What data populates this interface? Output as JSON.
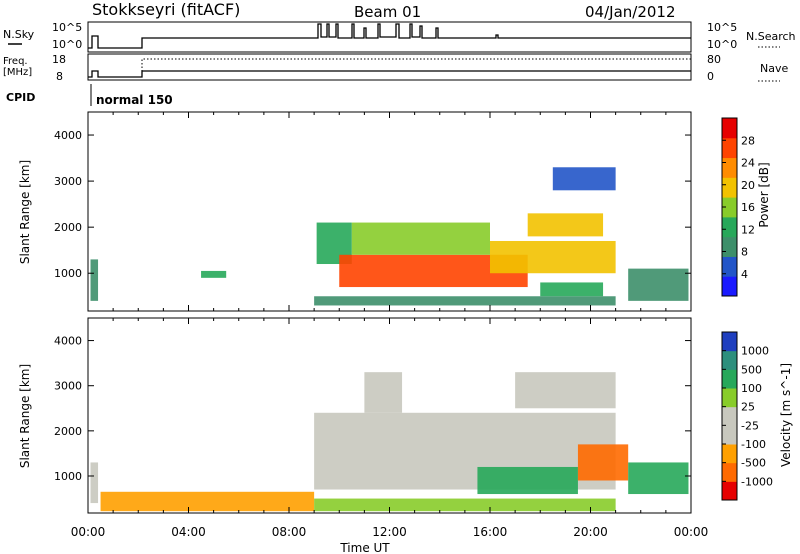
{
  "header": {
    "station": "Stokkseyri (fitACF)",
    "beam": "Beam 01",
    "date": "04/Jan/2012"
  },
  "strip_panels": {
    "nsky": {
      "label": "N.Sky",
      "right_label": "N.Search",
      "left_ticks": [
        "10^5",
        "10^0"
      ],
      "right_ticks": [
        "10^5",
        "10^0"
      ]
    },
    "freq": {
      "label_line1": "Freq.",
      "label_line2": "[MHz]",
      "right_label": "Nave",
      "left_ticks": [
        "18",
        "8"
      ],
      "right_ticks": [
        "80",
        "0"
      ]
    },
    "cpid": {
      "label": "CPID",
      "mode": "normal 150"
    }
  },
  "colors": {
    "power_scale": [
      "#1a1aff",
      "#2255c8",
      "#3d8f6a",
      "#27a85a",
      "#88cc2a",
      "#f2c200",
      "#ff8c00",
      "#ff4400",
      "#e60000"
    ],
    "velocity_scale": [
      "#e60000",
      "#ff6a00",
      "#ffa000",
      "#c8c8be",
      "#c8c8be",
      "#88cc2a",
      "#27a85a",
      "#2d8f7d",
      "#1f3fbf"
    ],
    "ground_scatter": "#c8c8be"
  },
  "chart_data": [
    {
      "type": "heatmap",
      "name": "power",
      "xlabel": "",
      "ylabel": "Slant Range [km]",
      "xlim": [
        0,
        24
      ],
      "ylim": [
        180,
        4500
      ],
      "yticks": [
        1000,
        2000,
        3000,
        4000
      ],
      "colorbar": {
        "label": "Power [dB]",
        "ticks": [
          "4",
          "8",
          "12",
          "16",
          "20",
          "24",
          "28"
        ],
        "range": [
          0,
          32
        ]
      },
      "regions": [
        {
          "t": [
            0.1,
            0.4
          ],
          "r": [
            400,
            1300
          ],
          "v": 10
        },
        {
          "t": [
            4.5,
            5.5
          ],
          "r": [
            900,
            1050
          ],
          "v": 12
        },
        {
          "t": [
            9.0,
            21.0
          ],
          "r": [
            300,
            500
          ],
          "v": 8
        },
        {
          "t": [
            9.1,
            10.5
          ],
          "r": [
            1200,
            2100
          ],
          "v": 14
        },
        {
          "t": [
            10.0,
            17.5
          ],
          "r": [
            700,
            1400
          ],
          "v": 26
        },
        {
          "t": [
            10.5,
            16.0
          ],
          "r": [
            1400,
            2100
          ],
          "v": 16
        },
        {
          "t": [
            16.0,
            21.0
          ],
          "r": [
            1000,
            1700
          ],
          "v": 20
        },
        {
          "t": [
            17.5,
            20.5
          ],
          "r": [
            1800,
            2300
          ],
          "v": 18
        },
        {
          "t": [
            18.0,
            20.5
          ],
          "r": [
            500,
            800
          ],
          "v": 14
        },
        {
          "t": [
            18.5,
            21.0
          ],
          "r": [
            2800,
            3300
          ],
          "v": 6
        },
        {
          "t": [
            21.5,
            23.9
          ],
          "r": [
            400,
            1100
          ],
          "v": 10
        }
      ]
    },
    {
      "type": "heatmap",
      "name": "velocity",
      "xlabel": "Time UT",
      "ylabel": "Slant Range [km]",
      "xlim": [
        0,
        24
      ],
      "ylim": [
        180,
        4500
      ],
      "xticks": [
        "00:00",
        "04:00",
        "08:00",
        "12:00",
        "16:00",
        "20:00",
        "00:00"
      ],
      "yticks": [
        1000,
        2000,
        3000,
        4000
      ],
      "colorbar": {
        "label": "Velocity [m s^-1]",
        "ticks": [
          "1000",
          "500",
          "100",
          "25",
          "-25",
          "-100",
          "-500",
          "-1000"
        ]
      },
      "regions": [
        {
          "t": [
            0.1,
            0.4
          ],
          "r": [
            400,
            1300
          ],
          "v": 0
        },
        {
          "t": [
            0.5,
            9.0
          ],
          "r": [
            220,
            650
          ],
          "v": -80
        },
        {
          "t": [
            9.0,
            21.0
          ],
          "r": [
            220,
            500
          ],
          "v": 60
        },
        {
          "t": [
            9.0,
            21.0
          ],
          "r": [
            700,
            2400
          ],
          "v": 0
        },
        {
          "t": [
            11.0,
            12.5
          ],
          "r": [
            2400,
            3300
          ],
          "v": 0
        },
        {
          "t": [
            17.0,
            21.0
          ],
          "r": [
            2500,
            3300
          ],
          "v": 0
        },
        {
          "t": [
            15.5,
            19.5
          ],
          "r": [
            600,
            1200
          ],
          "v": 150
        },
        {
          "t": [
            19.5,
            21.5
          ],
          "r": [
            900,
            1700
          ],
          "v": -400
        },
        {
          "t": [
            21.5,
            23.9
          ],
          "r": [
            600,
            1300
          ],
          "v": 200
        }
      ]
    }
  ]
}
